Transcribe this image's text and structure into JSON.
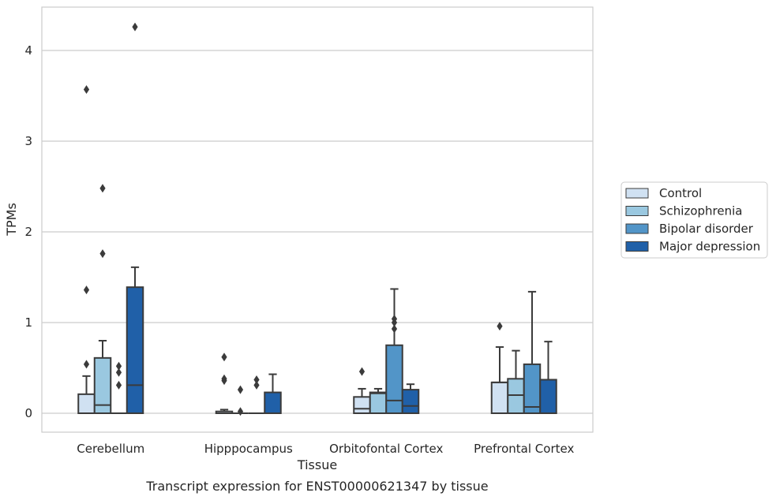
{
  "chart_data": {
    "type": "box",
    "title": "",
    "caption": "Transcript expression for ENST00000621347 by tissue",
    "xlabel": "Tissue",
    "ylabel": "TPMs",
    "ylim": [
      -0.2,
      4.5
    ],
    "yticks": [
      0,
      1,
      2,
      3,
      4
    ],
    "grid": "horizontal",
    "legend_position": "right",
    "categories": [
      "Cerebellum",
      "Hipppocampus",
      "Orbitofontal Cortex",
      "Prefrontal Cortex"
    ],
    "series": [
      {
        "name": "Control",
        "color": "#d0e1f2",
        "boxes": [
          {
            "q1": 0.0,
            "median": 0.0,
            "q3": 0.21,
            "whisker_low": 0.0,
            "whisker_high": 0.41,
            "outliers": [
              0.54,
              1.36,
              3.57
            ]
          },
          {
            "q1": 0.0,
            "median": 0.0,
            "q3": 0.02,
            "whisker_low": 0.0,
            "whisker_high": 0.04,
            "outliers": [
              0.36,
              0.38,
              0.62
            ]
          },
          {
            "q1": 0.0,
            "median": 0.05,
            "q3": 0.18,
            "whisker_low": 0.0,
            "whisker_high": 0.27,
            "outliers": [
              0.46
            ]
          },
          {
            "q1": 0.0,
            "median": 0.34,
            "q3": 0.34,
            "whisker_low": 0.0,
            "whisker_high": 0.73,
            "outliers": [
              0.96
            ]
          }
        ]
      },
      {
        "name": "Schizophrenia",
        "color": "#9ac8e0",
        "boxes": [
          {
            "q1": 0.0,
            "median": 0.09,
            "q3": 0.61,
            "whisker_low": 0.0,
            "whisker_high": 0.8,
            "outliers": [
              1.76,
              2.48
            ]
          },
          {
            "q1": 0.0,
            "median": 0.0,
            "q3": 0.0,
            "whisker_low": 0.0,
            "whisker_high": 0.0,
            "outliers": [
              0.02,
              0.26
            ]
          },
          {
            "q1": 0.0,
            "median": 0.22,
            "q3": 0.23,
            "whisker_low": 0.0,
            "whisker_high": 0.27,
            "outliers": []
          },
          {
            "q1": 0.0,
            "median": 0.2,
            "q3": 0.38,
            "whisker_low": 0.0,
            "whisker_high": 0.69,
            "outliers": []
          }
        ]
      },
      {
        "name": "Bipolar disorder",
        "color": "#5295c8",
        "boxes": [
          {
            "q1": 0.0,
            "median": 0.0,
            "q3": 0.0,
            "whisker_low": 0.0,
            "whisker_high": 0.0,
            "outliers": [
              0.31,
              0.45,
              0.52
            ]
          },
          {
            "q1": 0.0,
            "median": 0.0,
            "q3": 0.0,
            "whisker_low": 0.0,
            "whisker_high": 0.0,
            "outliers": [
              0.31,
              0.37
            ]
          },
          {
            "q1": 0.0,
            "median": 0.14,
            "q3": 0.75,
            "whisker_low": 0.0,
            "whisker_high": 1.37,
            "outliers": [
              0.93,
              1.0,
              1.04
            ]
          },
          {
            "q1": 0.0,
            "median": 0.07,
            "q3": 0.54,
            "whisker_low": 0.0,
            "whisker_high": 1.34,
            "outliers": []
          }
        ]
      },
      {
        "name": "Major depression",
        "color": "#2060a8",
        "boxes": [
          {
            "q1": 0.0,
            "median": 0.31,
            "q3": 1.39,
            "whisker_low": 0.0,
            "whisker_high": 1.61,
            "outliers": [
              4.26
            ]
          },
          {
            "q1": 0.0,
            "median": 0.0,
            "q3": 0.23,
            "whisker_low": 0.0,
            "whisker_high": 0.43,
            "outliers": []
          },
          {
            "q1": 0.0,
            "median": 0.08,
            "q3": 0.26,
            "whisker_low": 0.0,
            "whisker_high": 0.32,
            "outliers": []
          },
          {
            "q1": 0.0,
            "median": 0.37,
            "q3": 0.37,
            "whisker_low": 0.0,
            "whisker_high": 0.79,
            "outliers": []
          }
        ]
      }
    ]
  }
}
